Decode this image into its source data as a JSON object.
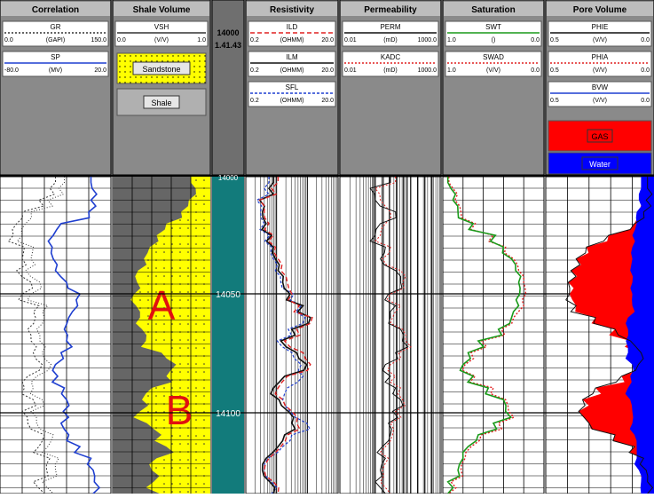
{
  "chart_data": {
    "type": "line",
    "title": "",
    "depth": {
      "start_label": "14000",
      "readout": "1.41.43",
      "ticks": [
        14050,
        14100
      ]
    },
    "tracks": [
      {
        "name": "Correlation",
        "curves": [
          {
            "name": "GR",
            "unit": "(GAPI)",
            "min": "0.0",
            "max": "150.0",
            "color": "#333333",
            "dash": "2,2"
          },
          {
            "name": "SP",
            "unit": "(MV)",
            "min": "-80.0",
            "max": "20.0",
            "color": "#1f3fd0",
            "dash": ""
          }
        ]
      },
      {
        "name": "Shale Volume",
        "curves": [
          {
            "name": "VSH",
            "unit": "(V/V)",
            "min": "0.0",
            "max": "1.0",
            "color": "#333333",
            "dash": ""
          }
        ],
        "fills": [
          {
            "label": "Sandstone",
            "color": "#ffff00"
          },
          {
            "label": "Shale",
            "color": "#b0b0b0"
          }
        ]
      },
      {
        "name": "Resistivity",
        "curves": [
          {
            "name": "ILD",
            "unit": "(OHMM)",
            "min": "0.2",
            "max": "20.0",
            "color": "#e02020",
            "dash": "5,3"
          },
          {
            "name": "ILM",
            "unit": "(OHMM)",
            "min": "0.2",
            "max": "20.0",
            "color": "#111111",
            "dash": ""
          },
          {
            "name": "SFL",
            "unit": "(OHMM)",
            "min": "0.2",
            "max": "20.0",
            "color": "#1f3fd0",
            "dash": "3,2"
          }
        ]
      },
      {
        "name": "Permeability",
        "curves": [
          {
            "name": "PERM",
            "unit": "(mD)",
            "min": "0.01",
            "max": "1000.0",
            "color": "#111111",
            "dash": ""
          },
          {
            "name": "KADC",
            "unit": "(mD)",
            "min": "0.01",
            "max": "1000.0",
            "color": "#e02020",
            "dash": "2,2"
          }
        ]
      },
      {
        "name": "Saturation",
        "curves": [
          {
            "name": "SWT",
            "unit": "()",
            "min": "1.0",
            "max": "0.0",
            "color": "#1a9a1a",
            "dash": ""
          },
          {
            "name": "SWAD",
            "unit": "(V/V)",
            "min": "1.0",
            "max": "0.0",
            "color": "#e02020",
            "dash": "2,2"
          }
        ]
      },
      {
        "name": "Pore Volume",
        "curves": [
          {
            "name": "PHIE",
            "unit": "(V/V)",
            "min": "0.5",
            "max": "0.0",
            "color": "#111111",
            "dash": ""
          },
          {
            "name": "PHIA",
            "unit": "(V/V)",
            "min": "0.5",
            "max": "0.0",
            "color": "#e02020",
            "dash": "2,2"
          },
          {
            "name": "BVW",
            "unit": "(V/V)",
            "min": "0.5",
            "max": "0.0",
            "color": "#1f3fd0",
            "dash": ""
          }
        ],
        "fills": [
          {
            "label": "GAS",
            "color": "#ff0000"
          },
          {
            "label": "Water",
            "color": "#0000ff"
          }
        ]
      }
    ],
    "annotations": [
      {
        "text": "A",
        "color": "#e01010"
      },
      {
        "text": "B",
        "color": "#e01010"
      }
    ],
    "profiles": {
      "sp": [
        0.82,
        0.83,
        0.82,
        0.8,
        0.55,
        0.48,
        0.47,
        0.48,
        0.5,
        0.6,
        0.72,
        0.7,
        0.62,
        0.58,
        0.6,
        0.55,
        0.5,
        0.52,
        0.58,
        0.6,
        0.57,
        0.55,
        0.62,
        0.72,
        0.82,
        0.84,
        0.85,
        0.84
      ],
      "gr": [
        0.5,
        0.45,
        0.35,
        0.2,
        0.15,
        0.12,
        0.22,
        0.2,
        0.15,
        0.28,
        0.2,
        0.35,
        0.32,
        0.25,
        0.28,
        0.3,
        0.38,
        0.25,
        0.22,
        0.3,
        0.2,
        0.25,
        0.4,
        0.35,
        0.45,
        0.42,
        0.3,
        0.4
      ],
      "vsh": [
        0.2,
        0.15,
        0.22,
        0.3,
        0.45,
        0.55,
        0.62,
        0.68,
        0.74,
        0.75,
        0.78,
        0.76,
        0.72,
        0.7,
        0.66,
        0.5,
        0.35,
        0.45,
        0.6,
        0.7,
        0.72,
        0.65,
        0.5,
        0.45,
        0.55,
        0.6,
        0.58,
        0.52
      ],
      "ild": [
        0.35,
        0.28,
        0.15,
        0.2,
        0.25,
        0.3,
        0.32,
        0.35,
        0.38,
        0.45,
        0.5,
        0.58,
        0.72,
        0.55,
        0.42,
        0.62,
        0.7,
        0.45,
        0.35,
        0.4,
        0.5,
        0.55,
        0.45,
        0.38,
        0.25,
        0.2,
        0.3,
        0.35
      ],
      "ilm": [
        0.3,
        0.25,
        0.15,
        0.18,
        0.22,
        0.28,
        0.3,
        0.32,
        0.35,
        0.4,
        0.48,
        0.62,
        0.7,
        0.5,
        0.38,
        0.55,
        0.66,
        0.42,
        0.3,
        0.36,
        0.46,
        0.5,
        0.42,
        0.35,
        0.22,
        0.18,
        0.26,
        0.3
      ],
      "sfl": [
        0.25,
        0.2,
        0.12,
        0.16,
        0.2,
        0.26,
        0.28,
        0.3,
        0.32,
        0.38,
        0.52,
        0.6,
        0.64,
        0.46,
        0.34,
        0.5,
        0.6,
        0.62,
        0.45,
        0.4,
        0.48,
        0.66,
        0.5,
        0.4,
        0.24,
        0.2,
        0.28,
        0.28
      ],
      "perm": [
        0.5,
        0.3,
        0.35,
        0.55,
        0.4,
        0.35,
        0.45,
        0.4,
        0.55,
        0.6,
        0.48,
        0.55,
        0.5,
        0.6,
        0.62,
        0.55,
        0.45,
        0.5,
        0.55,
        0.6,
        0.52,
        0.48,
        0.5,
        0.42,
        0.45,
        0.4,
        0.35,
        0.45
      ],
      "kadc": [
        0.55,
        0.35,
        0.4,
        0.5,
        0.45,
        0.4,
        0.5,
        0.42,
        0.6,
        0.62,
        0.5,
        0.6,
        0.52,
        0.62,
        0.65,
        0.58,
        0.5,
        0.55,
        0.6,
        0.62,
        0.55,
        0.5,
        0.52,
        0.45,
        0.48,
        0.42,
        0.4,
        0.5
      ],
      "swt": [
        0.05,
        0.08,
        0.1,
        0.15,
        0.3,
        0.52,
        0.6,
        0.68,
        0.72,
        0.75,
        0.76,
        0.75,
        0.68,
        0.55,
        0.35,
        0.25,
        0.2,
        0.3,
        0.45,
        0.6,
        0.62,
        0.5,
        0.35,
        0.25,
        0.2,
        0.15,
        0.05,
        0.05
      ],
      "swad": [
        0.06,
        0.1,
        0.12,
        0.18,
        0.32,
        0.5,
        0.62,
        0.7,
        0.75,
        0.8,
        0.82,
        0.8,
        0.7,
        0.58,
        0.38,
        0.28,
        0.22,
        0.32,
        0.5,
        0.62,
        0.65,
        0.55,
        0.38,
        0.28,
        0.22,
        0.18,
        0.08,
        0.06
      ],
      "phie": [
        0.05,
        0.05,
        0.06,
        0.08,
        0.15,
        0.35,
        0.52,
        0.6,
        0.64,
        0.66,
        0.65,
        0.6,
        0.45,
        0.3,
        0.18,
        0.1,
        0.12,
        0.25,
        0.45,
        0.55,
        0.58,
        0.5,
        0.3,
        0.15,
        0.08,
        0.06,
        0.05,
        0.05
      ],
      "bvw": [
        0.06,
        0.06,
        0.07,
        0.08,
        0.08,
        0.1,
        0.1,
        0.1,
        0.11,
        0.1,
        0.1,
        0.1,
        0.12,
        0.12,
        0.13,
        0.12,
        0.1,
        0.11,
        0.12,
        0.11,
        0.1,
        0.1,
        0.09,
        0.08,
        0.08,
        0.07,
        0.06,
        0.06
      ]
    }
  }
}
